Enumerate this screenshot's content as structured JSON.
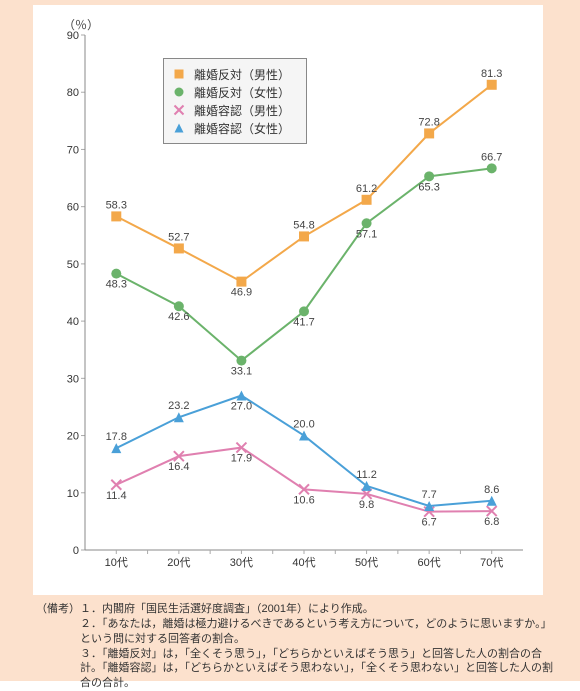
{
  "y_unit": "（％）",
  "chart": {
    "type": "line",
    "categories": [
      "10代",
      "20代",
      "30代",
      "40代",
      "50代",
      "60代",
      "70代"
    ],
    "ylim": [
      0,
      90
    ],
    "ytick_step": 10,
    "background_color": "#ffffff",
    "canvas_color": "#fce1cd",
    "axis_color": "#888888",
    "series": [
      {
        "key": "hantai_m",
        "label": "離婚反対（男性）",
        "values": [
          58.3,
          52.7,
          46.9,
          54.8,
          61.2,
          72.8,
          81.3
        ],
        "color": "#f3a84a",
        "marker": "square",
        "label_pos": [
          "above",
          "above",
          "below",
          "above",
          "above",
          "above",
          "above"
        ]
      },
      {
        "key": "hantai_f",
        "label": "離婚反対（女性）",
        "values": [
          48.3,
          42.6,
          33.1,
          41.7,
          57.1,
          65.3,
          66.7
        ],
        "color": "#6bb36b",
        "marker": "circle",
        "label_pos": [
          "below",
          "below",
          "below",
          "below",
          "below",
          "below",
          "above"
        ]
      },
      {
        "key": "younin_m",
        "label": "離婚容認（男性）",
        "values": [
          11.4,
          16.4,
          17.9,
          10.6,
          9.8,
          6.7,
          6.8
        ],
        "color": "#e080b0",
        "marker": "x",
        "label_pos": [
          "below",
          "below",
          "below",
          "below",
          "below",
          "below",
          "below"
        ]
      },
      {
        "key": "younin_f",
        "label": "離婚容認（女性）",
        "values": [
          17.8,
          23.2,
          27.0,
          20.0,
          11.2,
          7.7,
          8.6
        ],
        "color": "#4aa0d8",
        "marker": "triangle",
        "label_pos": [
          "above",
          "above",
          "below",
          "above",
          "above",
          "above",
          "above"
        ]
      }
    ],
    "legend": {
      "bg": "#f5f5f5",
      "border": "#888888"
    },
    "line_width": 2,
    "marker_size": 5
  },
  "notes": {
    "prefix": "（備考）",
    "items": [
      "１．内閣府「国民生活選好度調査」（2001年）により作成。",
      "２．「あなたは，離婚は極力避けるべきであるという考え方について，どのように思いますか。」という問に対する回答者の割合。",
      "３．「離婚反対」は，「全くそう思う」，「どちらかといえばそう思う」と回答した人の割合の合計。「離婚容認」は，「どちらかといえばそう思わない」，「全くそう思わない」と回答した人の割合の合計。"
    ]
  }
}
